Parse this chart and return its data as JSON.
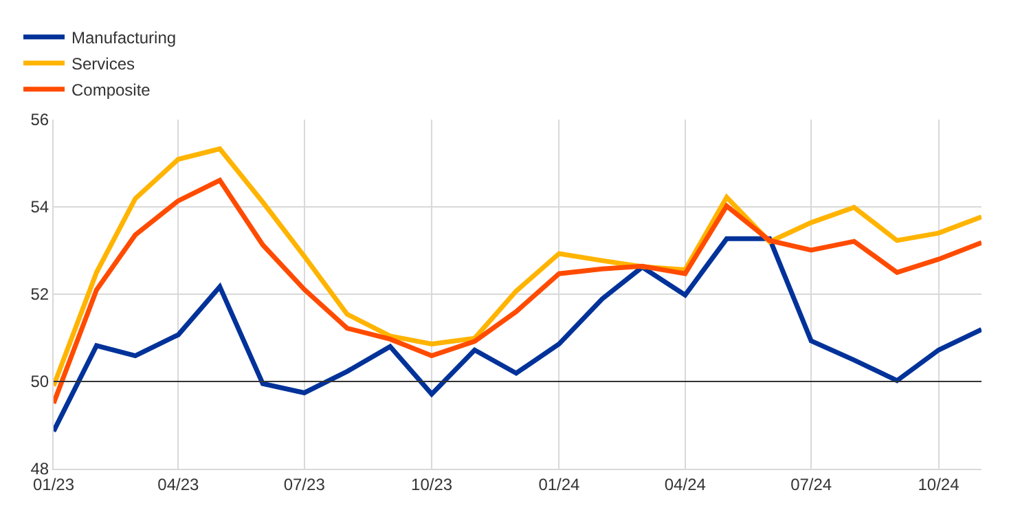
{
  "chart_data": {
    "type": "line",
    "x": [
      "2023-01",
      "2023-02",
      "2023-03",
      "2023-04",
      "2023-05",
      "2023-06",
      "2023-07",
      "2023-08",
      "2023-09",
      "2023-10",
      "2023-11",
      "2023-12",
      "2024-01",
      "2024-02",
      "2024-03",
      "2024-04",
      "2024-05",
      "2024-06",
      "2024-07",
      "2024-08",
      "2024-09",
      "2024-10",
      "2024-11"
    ],
    "series": [
      {
        "name": "Manufacturing",
        "color": "#003299",
        "values": [
          48.86,
          50.82,
          50.59,
          51.07,
          52.17,
          49.95,
          49.74,
          50.23,
          50.8,
          49.71,
          50.72,
          50.19,
          50.86,
          51.89,
          52.62,
          51.98,
          53.27,
          53.27,
          50.93,
          50.49,
          50.02,
          50.72,
          51.19
        ]
      },
      {
        "name": "Services",
        "color": "#ffb400",
        "values": [
          49.9,
          52.5,
          54.19,
          55.09,
          55.33,
          54.11,
          52.87,
          51.54,
          51.04,
          50.86,
          50.99,
          52.07,
          52.93,
          52.77,
          52.63,
          52.56,
          54.22,
          53.2,
          53.64,
          53.99,
          53.23,
          53.4,
          53.77
        ]
      },
      {
        "name": "Composite",
        "color": "#ff4b00",
        "values": [
          49.5,
          52.1,
          53.36,
          54.14,
          54.61,
          53.13,
          52.11,
          51.22,
          50.97,
          50.59,
          50.92,
          51.6,
          52.47,
          52.58,
          52.64,
          52.47,
          54.02,
          53.23,
          53.01,
          53.21,
          52.5,
          52.8,
          53.18
        ]
      }
    ],
    "xlim": [
      "2023-01",
      "2024-11"
    ],
    "xticks": [
      {
        "value": "2023-01",
        "label": "01/23"
      },
      {
        "value": "2023-04",
        "label": "04/23"
      },
      {
        "value": "2023-07",
        "label": "07/23"
      },
      {
        "value": "2023-10",
        "label": "10/23"
      },
      {
        "value": "2024-01",
        "label": "01/24"
      },
      {
        "value": "2024-04",
        "label": "04/24"
      },
      {
        "value": "2024-07",
        "label": "07/24"
      },
      {
        "value": "2024-10",
        "label": "10/24"
      }
    ],
    "ylim": [
      48,
      56
    ],
    "yticks": [
      48,
      50,
      52,
      54,
      56
    ],
    "ref_lines": [
      {
        "axis": "y",
        "value": 50,
        "color": "#333333"
      }
    ],
    "grid": true,
    "legend": "top left",
    "marker": "none",
    "line_style": "solid"
  }
}
